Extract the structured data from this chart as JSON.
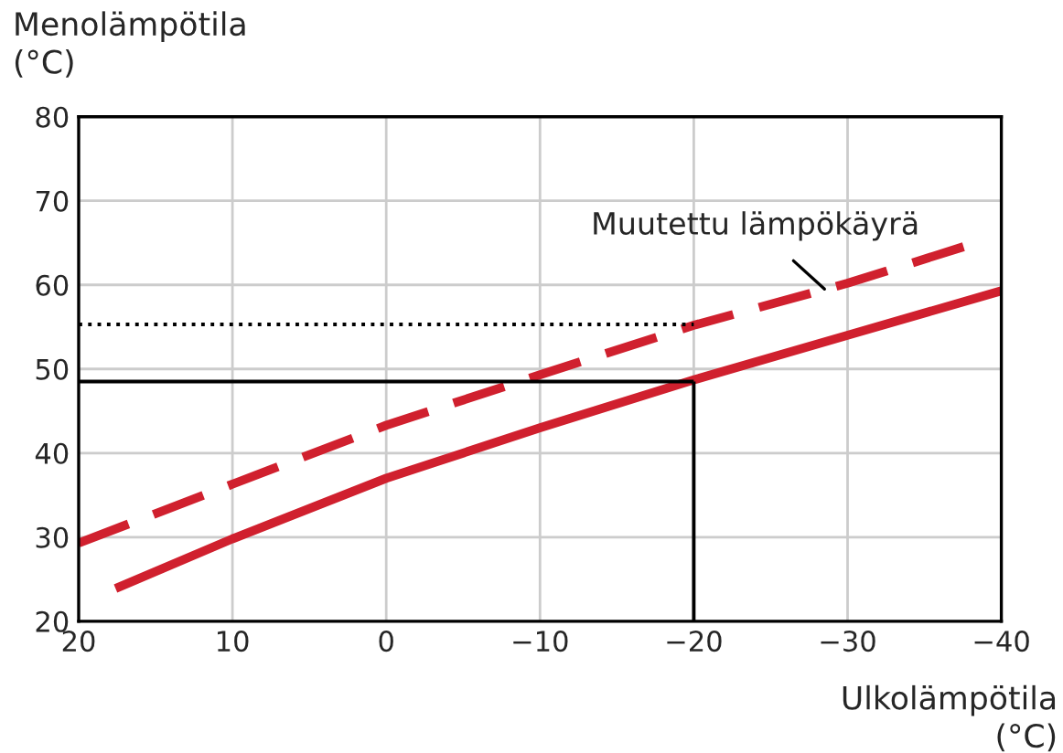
{
  "chart_data": {
    "type": "line",
    "xlabel": "Ulkolämpötila\n(°C)",
    "ylabel": "Menolämpötila\n(°C)",
    "xlim": [
      20,
      -40
    ],
    "xticks": [
      20,
      10,
      0,
      -10,
      -20,
      -30,
      -40
    ],
    "ylim": [
      20,
      80
    ],
    "yticks": [
      20,
      30,
      40,
      50,
      60,
      70,
      80
    ],
    "grid": true,
    "legend": false,
    "series": [
      {
        "color": "#d0202e",
        "line_style": "solid",
        "x": [
          17.6,
          10,
          0,
          -10,
          -20,
          -30,
          -40
        ],
        "values": [
          23.9,
          29.8,
          37,
          43,
          48.7,
          54,
          59.3
        ]
      },
      {
        "color": "#d0202e",
        "line_style": "dashed",
        "x": [
          20,
          10,
          0,
          -10,
          -20,
          -30,
          -38
        ],
        "values": [
          29.3,
          36.3,
          43.3,
          49.3,
          55.2,
          60.2,
          64.8
        ]
      },
      {
        "color": "#000000",
        "line_style": "solid",
        "x": [
          20,
          -20
        ],
        "values": [
          48.5,
          48.5
        ]
      },
      {
        "color": "#000000",
        "line_style": "solid",
        "x": [
          -20,
          -20
        ],
        "values": [
          20,
          48.5
        ]
      },
      {
        "color": "#000000",
        "line_style": "dotted",
        "x": [
          20,
          -20
        ],
        "values": [
          55.3,
          55.3
        ]
      }
    ],
    "annotations": [
      {
        "text": "Muutettu lämpökäyrä",
        "x": -28.5,
        "y": 59.5
      }
    ]
  }
}
